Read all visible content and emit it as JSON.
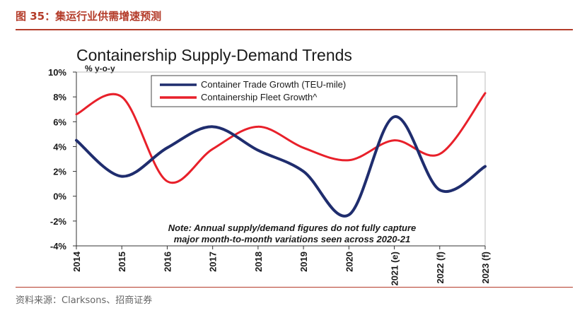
{
  "caption": "图 35：集运行业供需增速预测",
  "source": "资料来源：Clarksons、招商证券",
  "chart_data": {
    "type": "line",
    "title": "Containership Supply-Demand Trends",
    "ylabel": "% y-o-y",
    "xlabel": "",
    "categories": [
      "2014",
      "2015",
      "2016",
      "2017",
      "2018",
      "2019",
      "2020",
      "2021 (e)",
      "2022 (f)",
      "2023 (f)"
    ],
    "ylim": [
      -4,
      10
    ],
    "yticks": [
      "10%",
      "8%",
      "6%",
      "4%",
      "2%",
      "0%",
      "-2%",
      "-4%"
    ],
    "grid": false,
    "legend_position": "top-right",
    "series": [
      {
        "name": "Container Trade Growth (TEU-mile)",
        "color": "#1f2d6e",
        "values": [
          4.5,
          1.6,
          3.9,
          5.6,
          3.7,
          2.0,
          -1.5,
          6.4,
          0.5,
          2.4
        ]
      },
      {
        "name": "Containership Fleet Growth^",
        "color": "#e8202a",
        "values": [
          6.6,
          8.0,
          1.2,
          3.8,
          5.6,
          3.9,
          2.9,
          4.5,
          3.4,
          8.3
        ]
      }
    ],
    "note_lines": [
      "Note: Annual supply/demand figures do not fully capture",
      "major month-to-month variations seen across 2020-21"
    ]
  }
}
